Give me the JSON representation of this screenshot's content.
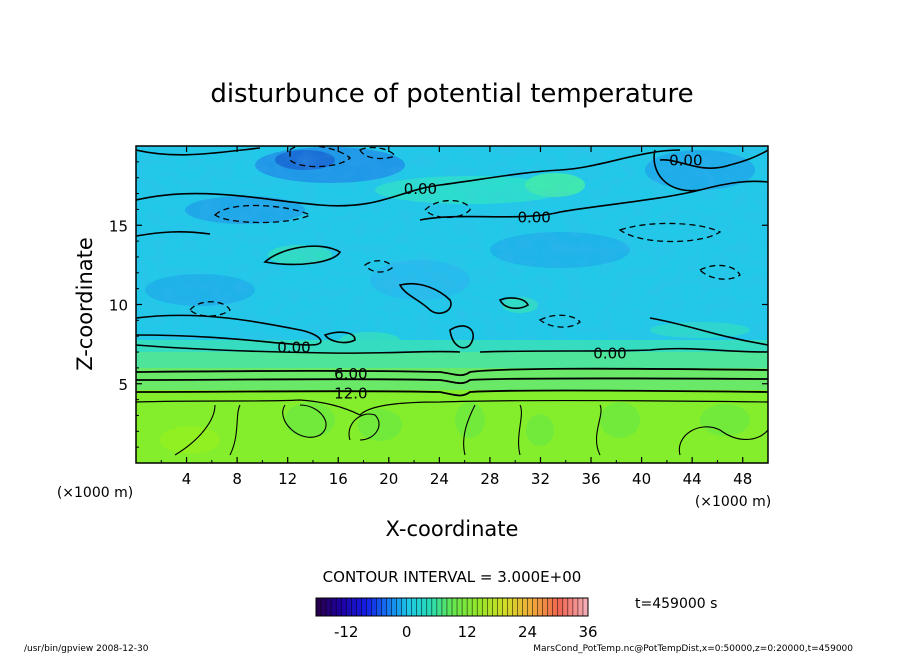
{
  "chart_data": {
    "type": "heatmap",
    "title": "disturbunce of potential temperature",
    "xlabel": "X-coordinate",
    "ylabel": "Z-coordinate",
    "x_unit": "(×1000 m)",
    "y_unit": "(×1000 m)",
    "xlim": [
      0,
      50
    ],
    "ylim": [
      0,
      20
    ],
    "x_ticks": [
      4,
      8,
      12,
      16,
      20,
      24,
      28,
      32,
      36,
      40,
      44,
      48
    ],
    "y_ticks": [
      5,
      10,
      15
    ],
    "contour_interval_text": "CONTOUR INTERVAL = 3.000E+00",
    "contour_labels": [
      {
        "text": "0.00",
        "x": 43.5,
        "y": 19.1
      },
      {
        "text": "0.00",
        "x": 22.5,
        "y": 17.3
      },
      {
        "text": "0.00",
        "x": 31.5,
        "y": 15.5
      },
      {
        "text": "0.00",
        "x": 12.5,
        "y": 7.3
      },
      {
        "text": "0.00",
        "x": 37.5,
        "y": 6.9
      },
      {
        "text": "6.00",
        "x": 17.0,
        "y": 5.6
      },
      {
        "text": "12.0",
        "x": 17.0,
        "y": 4.4
      }
    ],
    "colorbar": {
      "min": -18,
      "max": 36,
      "tick_values": [
        -12,
        0,
        12,
        24,
        36
      ],
      "tick_labels": [
        "-12",
        "0",
        "12",
        "24",
        "36"
      ]
    },
    "field_levels": {
      "lower_layer_0_to_4km": 14,
      "transition_4_to_6km": 9,
      "upper_layer_mean": -2,
      "upper_minimum": -9
    }
  },
  "time_label": "t=459000 s",
  "footer": {
    "left": "/usr/bin/gpview   2008-12-30",
    "right": "MarsCond_PotTemp.nc@PotTempDist,x=0:50000,z=0:20000,t=459000"
  }
}
